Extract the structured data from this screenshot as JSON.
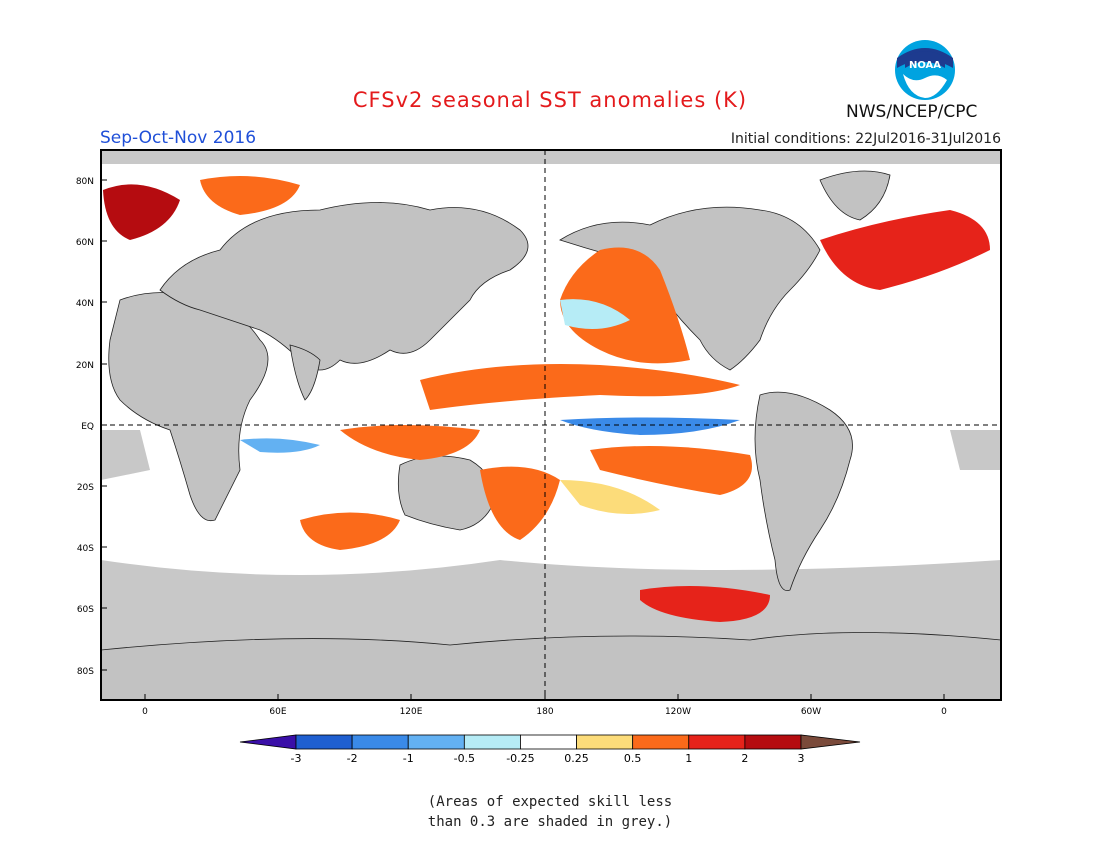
{
  "header": {
    "title": "CFSv2 seasonal SST anomalies (K)",
    "season": "Sep-Oct-Nov 2016",
    "agency": "NWS/NCEP/CPC",
    "initial_conditions": "Initial conditions: 22Jul2016-31Jul2016",
    "logo_text": "NOAA"
  },
  "map": {
    "lat_labels": [
      "80N",
      "60N",
      "40N",
      "20N",
      "EQ",
      "20S",
      "40S",
      "60S",
      "80S"
    ],
    "lon_labels": [
      "0",
      "60E",
      "120E",
      "180",
      "120W",
      "60W",
      "0"
    ]
  },
  "colorbar": {
    "labels": [
      "-3",
      "-2",
      "-1",
      "-0.5",
      "-0.25",
      "0.25",
      "0.5",
      "1",
      "2",
      "3"
    ],
    "colors": [
      "#3a0fa8",
      "#1f5fd0",
      "#3a8ae8",
      "#63b1f2",
      "#b6ecf6",
      "#ffffff",
      "#fcdc7a",
      "#fb6a1a",
      "#e6231a",
      "#b50c10",
      "#7a4a3a"
    ]
  },
  "colors": {
    "land": "#c2c2c2",
    "grey_skill": "#c8c8c8",
    "title": "#e41a1c",
    "season": "#1f4fd8"
  },
  "footnote": {
    "line1": "(Areas of expected skill less",
    "line2": "than 0.3 are shaded in grey.)"
  }
}
